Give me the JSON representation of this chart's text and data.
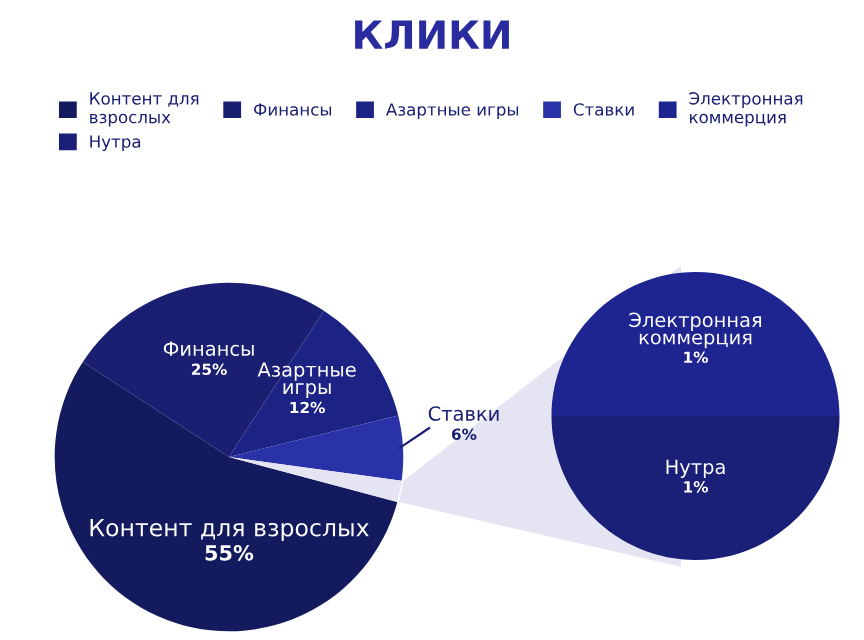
{
  "chart_data": [
    {
      "type": "pie",
      "title": "КЛИКИ",
      "legend": "top",
      "categories": [
        "Контент для взрослых",
        "Финансы",
        "Азартные игры",
        "Ставки",
        null
      ],
      "values": [
        55,
        25,
        12,
        6,
        2
      ],
      "value_labels": [
        "55%",
        "25%",
        "12%",
        "6%",
        null
      ],
      "colors": [
        "#141a5e",
        "#1a1f72",
        "#1d2385",
        "#2a32a8",
        "#e4e4f2"
      ]
    },
    {
      "type": "pie",
      "categories": [
        "Электронная коммерция",
        "Нутра"
      ],
      "values": [
        1,
        1
      ],
      "value_labels": [
        "1%",
        "1%"
      ],
      "colors": [
        "#1e2490",
        "#1a1f78"
      ]
    }
  ]
}
